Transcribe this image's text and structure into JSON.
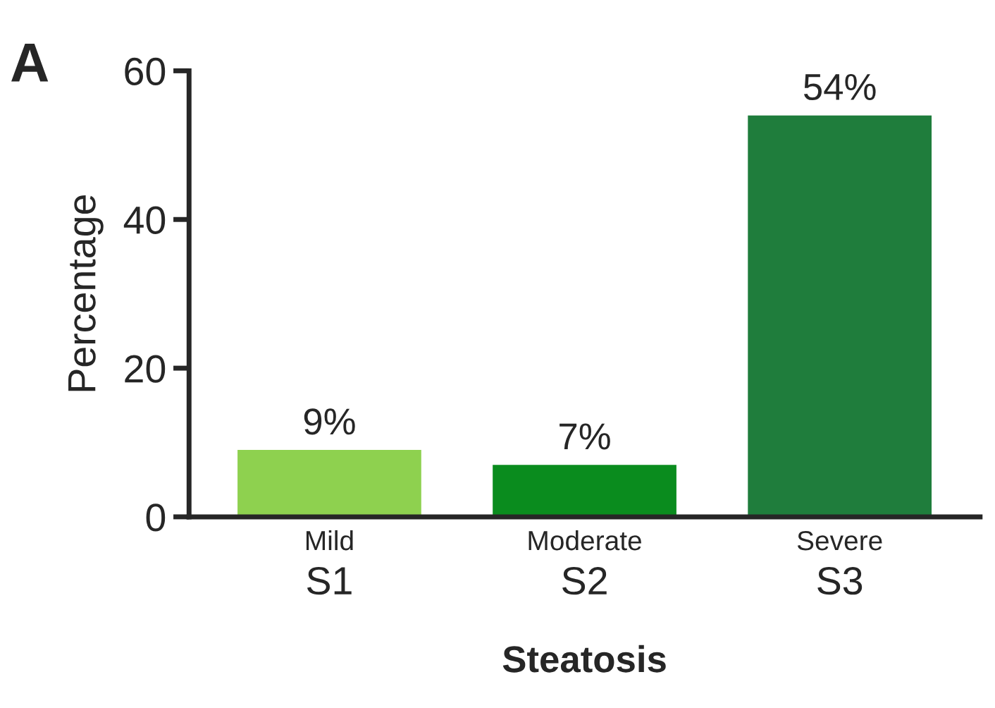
{
  "chart_data": {
    "type": "bar",
    "xlabel": "Steatosis",
    "ylabel": "Percentage",
    "categories": [
      "Mild\nS1",
      "Moderate\nS2",
      "Severe\nS3"
    ],
    "values": [
      9,
      7,
      54
    ],
    "colors": [
      "#8ed14f",
      "#0a8c1e",
      "#1f7d3c"
    ],
    "value_labels": [
      "9%",
      "7%",
      "54%"
    ],
    "ylim": [
      0,
      60
    ],
    "yticks": [
      0,
      20,
      40,
      60
    ],
    "grid": false,
    "annotations": [
      "A"
    ]
  }
}
